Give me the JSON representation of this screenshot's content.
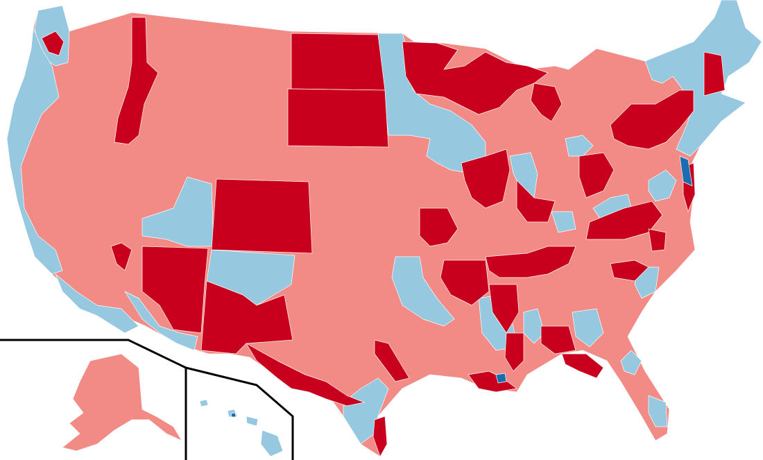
{
  "legend_colors": {
    "strong_republican": "#C8001E",
    "lean_republican": "#F28A86",
    "lean_democrat": "#96C8E0",
    "strong_democrat": "#1C6CB0"
  },
  "insets": [
    "alaska",
    "hawaii"
  ]
}
